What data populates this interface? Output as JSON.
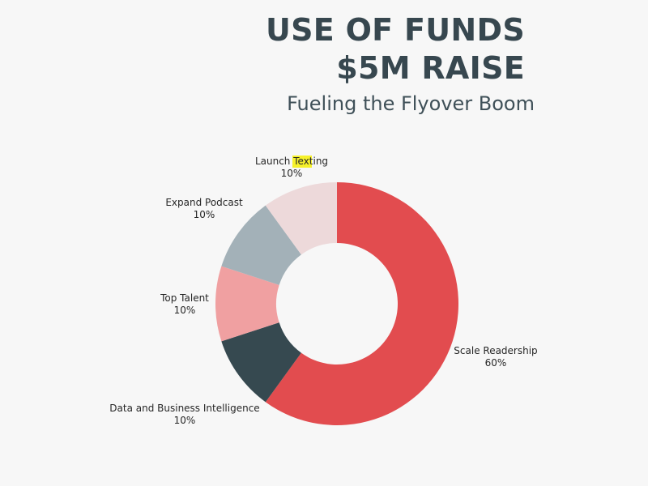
{
  "title": {
    "line1": "USE OF FUNDS",
    "line2": "$5M RAISE"
  },
  "subtitle": "Fueling the Flyover Boom",
  "chart_data": {
    "type": "pie",
    "donut": true,
    "categories": [
      "Scale Readership",
      "Data and Business Intelligence",
      "Top Talent",
      "Expand Podcast",
      "Launch Texting"
    ],
    "values": [
      60,
      10,
      10,
      10,
      10
    ],
    "value_labels": [
      "60%",
      "10%",
      "10%",
      "10%",
      "10%"
    ],
    "colors": [
      "#e24c4f",
      "#364950",
      "#f0a0a1",
      "#a3b1b8",
      "#edd9da"
    ],
    "legend": "none",
    "highlighted_text": "Text"
  }
}
